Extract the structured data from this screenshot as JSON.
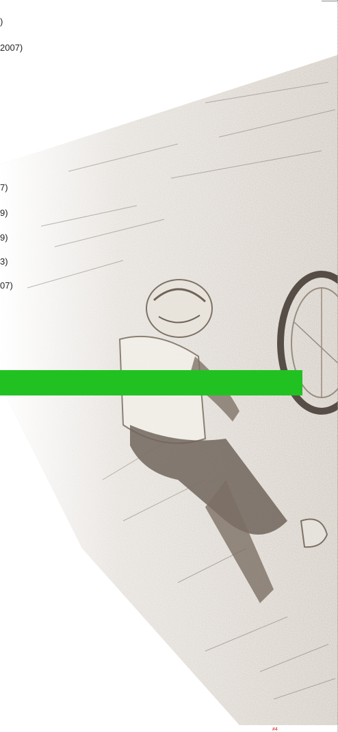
{
  "list_top": [
    ")",
    "2007)"
  ],
  "list_mid": [
    "7)",
    "9)",
    "9)",
    "3)",
    "07)"
  ],
  "banner": {
    "color": "#22c122"
  },
  "artwork": {
    "subject": "sketched-motocross-rider-illustration",
    "tone": "#8a7f72"
  },
  "bottom_mark": "#4"
}
